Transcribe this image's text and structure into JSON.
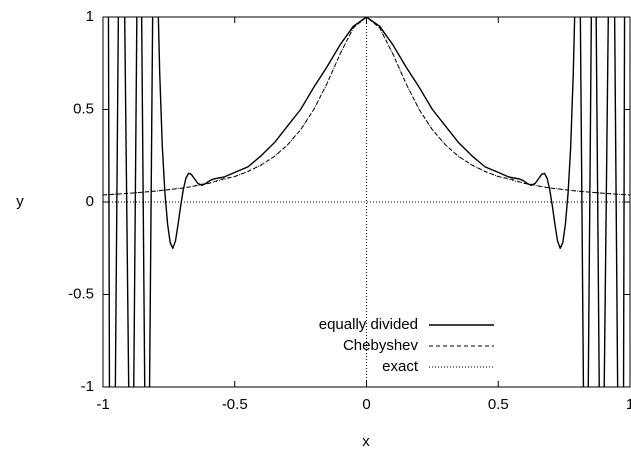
{
  "chart_data": {
    "type": "line",
    "title": "",
    "xlabel": "x",
    "ylabel": "y",
    "xlim": [
      -1,
      1
    ],
    "ylim": [
      -1,
      1
    ],
    "grid": false,
    "zero_axes": true,
    "legend_position": "bottom-center",
    "x_ticks": [
      {
        "value": -1,
        "label": "-1"
      },
      {
        "value": -0.5,
        "label": "-0.5"
      },
      {
        "value": 0,
        "label": "0"
      },
      {
        "value": 0.5,
        "label": "0.5"
      },
      {
        "value": 1,
        "label": "1"
      }
    ],
    "y_ticks": [
      {
        "value": -1,
        "label": "-1"
      },
      {
        "value": -0.5,
        "label": "-0.5"
      },
      {
        "value": 0,
        "label": "0"
      },
      {
        "value": 0.5,
        "label": "0.5"
      },
      {
        "value": 1,
        "label": "1"
      }
    ],
    "series": [
      {
        "name": "equally divided",
        "style": "solid",
        "color": "#000000",
        "x": [
          -0.98,
          -0.975,
          -0.955,
          -0.94,
          -0.92,
          -0.9,
          -0.885,
          -0.87,
          -0.855,
          -0.84,
          -0.825,
          -0.81,
          -0.795,
          -0.785,
          -0.775,
          -0.765,
          -0.755,
          -0.745,
          -0.735,
          -0.725,
          -0.715,
          -0.705,
          -0.695,
          -0.685,
          -0.675,
          -0.665,
          -0.655,
          -0.64,
          -0.625,
          -0.61,
          -0.595,
          -0.58,
          -0.56,
          -0.54,
          -0.5,
          -0.45,
          -0.4,
          -0.35,
          -0.3,
          -0.25,
          -0.2,
          -0.15,
          -0.1,
          -0.05,
          0,
          0.05,
          0.1,
          0.15,
          0.2,
          0.25,
          0.3,
          0.35,
          0.4,
          0.45,
          0.5,
          0.54,
          0.56,
          0.58,
          0.595,
          0.61,
          0.625,
          0.64,
          0.655,
          0.665,
          0.675,
          0.685,
          0.695,
          0.705,
          0.715,
          0.725,
          0.735,
          0.745,
          0.755,
          0.765,
          0.775,
          0.785,
          0.795,
          0.81,
          0.825,
          0.84,
          0.855,
          0.87,
          0.885,
          0.9,
          0.92,
          0.94,
          0.955,
          0.975,
          0.98
        ],
        "y": [
          1.3,
          -1.3,
          -1.3,
          1.3,
          1.3,
          -1.3,
          -1.3,
          1.3,
          1.3,
          -1.3,
          -1.3,
          1.3,
          1.3,
          0.7,
          0.3,
          0.05,
          -0.12,
          -0.22,
          -0.25,
          -0.21,
          -0.12,
          -0.02,
          0.07,
          0.13,
          0.155,
          0.15,
          0.13,
          0.1,
          0.09,
          0.1,
          0.115,
          0.125,
          0.13,
          0.135,
          0.16,
          0.19,
          0.25,
          0.32,
          0.41,
          0.5,
          0.62,
          0.73,
          0.85,
          0.95,
          1.0,
          0.95,
          0.85,
          0.73,
          0.62,
          0.5,
          0.41,
          0.32,
          0.25,
          0.19,
          0.16,
          0.135,
          0.13,
          0.125,
          0.115,
          0.1,
          0.09,
          0.1,
          0.13,
          0.15,
          0.155,
          0.13,
          0.07,
          -0.02,
          -0.12,
          -0.21,
          -0.25,
          -0.22,
          -0.12,
          0.05,
          0.3,
          0.7,
          1.3,
          1.3,
          -1.3,
          -1.3,
          1.3,
          1.3,
          -1.3,
          -1.3,
          1.3,
          1.3,
          -1.3,
          -1.3,
          1.3
        ]
      },
      {
        "name": "Chebyshev",
        "style": "dashed",
        "color": "#000000",
        "x": [
          -1,
          -0.9,
          -0.8,
          -0.7,
          -0.66,
          -0.63,
          -0.6,
          -0.55,
          -0.5,
          -0.45,
          -0.4,
          -0.35,
          -0.3,
          -0.25,
          -0.2,
          -0.15,
          -0.1,
          -0.05,
          0,
          0.05,
          0.1,
          0.15,
          0.2,
          0.25,
          0.3,
          0.35,
          0.4,
          0.45,
          0.5,
          0.55,
          0.6,
          0.63,
          0.66,
          0.7,
          0.8,
          0.9,
          1
        ],
        "y": [
          0.038,
          0.047,
          0.059,
          0.075,
          0.084,
          0.095,
          0.1,
          0.123,
          0.138,
          0.165,
          0.2,
          0.246,
          0.308,
          0.39,
          0.5,
          0.64,
          0.8,
          0.941,
          1.0,
          0.941,
          0.8,
          0.64,
          0.5,
          0.39,
          0.308,
          0.246,
          0.2,
          0.165,
          0.138,
          0.123,
          0.1,
          0.095,
          0.084,
          0.075,
          0.059,
          0.047,
          0.038
        ]
      },
      {
        "name": "exact",
        "style": "dotted",
        "color": "#000000",
        "x": [
          -1,
          -0.9,
          -0.8,
          -0.7,
          -0.6,
          -0.5,
          -0.45,
          -0.4,
          -0.35,
          -0.3,
          -0.25,
          -0.2,
          -0.15,
          -0.1,
          -0.05,
          0,
          0.05,
          0.1,
          0.15,
          0.2,
          0.25,
          0.3,
          0.35,
          0.4,
          0.45,
          0.5,
          0.6,
          0.7,
          0.8,
          0.9,
          1
        ],
        "y": [
          0.038,
          0.047,
          0.059,
          0.075,
          0.1,
          0.138,
          0.165,
          0.2,
          0.246,
          0.308,
          0.39,
          0.5,
          0.64,
          0.8,
          0.941,
          1.0,
          0.941,
          0.8,
          0.64,
          0.5,
          0.39,
          0.308,
          0.246,
          0.2,
          0.165,
          0.138,
          0.1,
          0.075,
          0.059,
          0.047,
          0.038
        ]
      }
    ]
  }
}
